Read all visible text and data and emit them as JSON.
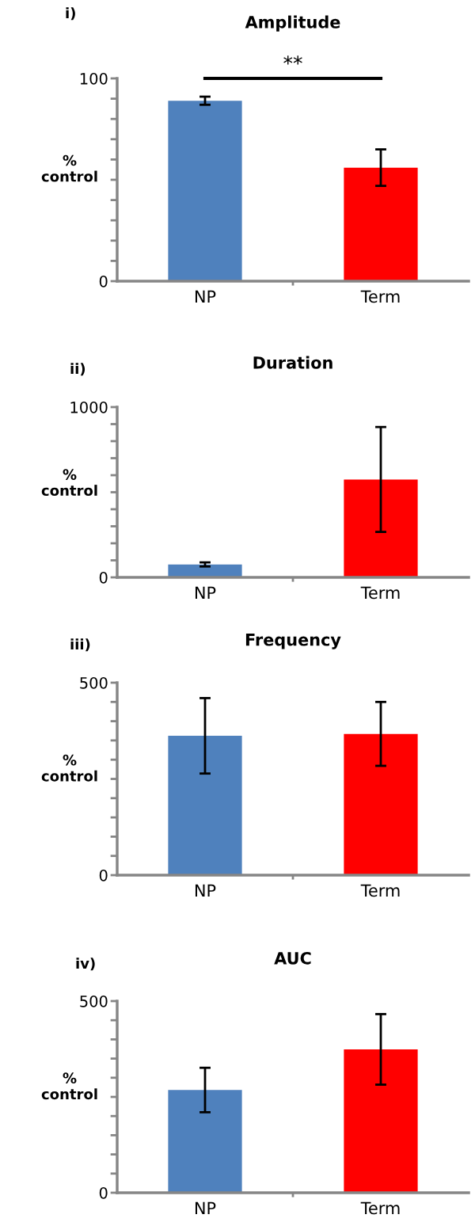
{
  "chart_data": [
    {
      "type": "bar",
      "title": "Amplitude",
      "ylabel": "%\ncontrol",
      "categories": [
        "NP",
        "Term"
      ],
      "values": [
        89,
        56
      ],
      "colors": [
        "#4f81bd",
        "#ff0000"
      ],
      "errors": [
        2,
        9
      ],
      "ylim": [
        0,
        100
      ],
      "yticks": [
        0,
        {
          "value": 10,
          "label": null
        },
        {
          "value": 20,
          "label": null
        },
        {
          "value": 30,
          "label": null
        },
        {
          "value": 40,
          "label": null
        },
        {
          "value": 50,
          "label": null
        },
        {
          "value": 60,
          "label": null
        },
        {
          "value": 70,
          "label": null
        },
        {
          "value": 80,
          "label": null
        },
        {
          "value": 90,
          "label": null
        },
        100
      ],
      "annotations": [
        "i)",
        "**"
      ]
    },
    {
      "type": "bar",
      "title": "Duration",
      "ylabel": "%\ncontrol",
      "categories": [
        "NP",
        "Term"
      ],
      "values": [
        76,
        575
      ],
      "colors": [
        "#4f81bd",
        "#ff0000"
      ],
      "errors": [
        12,
        308
      ],
      "ylim": [
        0,
        1000
      ],
      "yticks": [
        0,
        {
          "value": 100,
          "label": null
        },
        {
          "value": 200,
          "label": null
        },
        {
          "value": 300,
          "label": null
        },
        {
          "value": 400,
          "label": null
        },
        {
          "value": 500,
          "label": null
        },
        {
          "value": 600,
          "label": null
        },
        {
          "value": 700,
          "label": null
        },
        {
          "value": 800,
          "label": null
        },
        {
          "value": 900,
          "label": null
        },
        1000
      ],
      "annotations": [
        "ii)"
      ]
    },
    {
      "type": "bar",
      "title": "Frequency",
      "ylabel": "%\ncontrol",
      "categories": [
        "NP",
        "Term"
      ],
      "values": [
        362,
        367
      ],
      "colors": [
        "#4f81bd",
        "#ff0000"
      ],
      "errors": [
        98,
        83
      ],
      "ylim": [
        0,
        500
      ],
      "yticks": [
        0,
        {
          "value": 50,
          "label": null
        },
        {
          "value": 100,
          "label": null
        },
        {
          "value": 150,
          "label": null
        },
        {
          "value": 200,
          "label": null
        },
        {
          "value": 250,
          "label": null
        },
        {
          "value": 300,
          "label": null
        },
        {
          "value": 350,
          "label": null
        },
        {
          "value": 400,
          "label": null
        },
        {
          "value": 450,
          "label": null
        },
        500
      ],
      "annotations": [
        "iii)"
      ]
    },
    {
      "type": "bar",
      "title": "AUC",
      "ylabel": "%\ncontrol",
      "categories": [
        "NP",
        "Term"
      ],
      "values": [
        268,
        374
      ],
      "colors": [
        "#4f81bd",
        "#ff0000"
      ],
      "errors": [
        58,
        92
      ],
      "ylim": [
        0,
        500
      ],
      "yticks": [
        0,
        {
          "value": 50,
          "label": null
        },
        {
          "value": 100,
          "label": null
        },
        {
          "value": 150,
          "label": null
        },
        {
          "value": 200,
          "label": null
        },
        {
          "value": 250,
          "label": null
        },
        {
          "value": 300,
          "label": null
        },
        {
          "value": 350,
          "label": null
        },
        {
          "value": 400,
          "label": null
        },
        {
          "value": 450,
          "label": null
        },
        500
      ],
      "annotations": [
        "iv)"
      ]
    }
  ]
}
